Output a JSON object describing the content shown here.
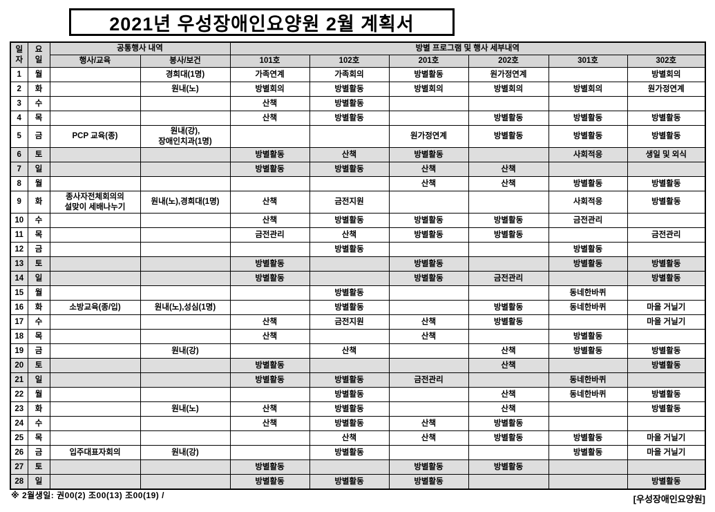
{
  "title": "2021년 우성장애인요양원 2월 계획서",
  "table": {
    "header": {
      "date": "일\n자",
      "day": "요\n일",
      "common_group": "공통행사 내역",
      "common_cols": [
        "행사/교육",
        "봉사/보건"
      ],
      "room_group": "방별 프로그램 및 행사 세부내역",
      "room_cols": [
        "101호",
        "102호",
        "201호",
        "202호",
        "301호",
        "302호"
      ]
    },
    "rows": [
      {
        "date": "1",
        "day": "월",
        "weekend": false,
        "tall": false,
        "cells": [
          "",
          "경희대(1명)",
          "가족연계",
          "가족회의",
          "방별활동",
          "원가정연계",
          "",
          "방별회의"
        ]
      },
      {
        "date": "2",
        "day": "화",
        "weekend": false,
        "tall": false,
        "cells": [
          "",
          "원내(노)",
          "방별회의",
          "방별활동",
          "방별회의",
          "방별회의",
          "방별회의",
          "원가정연계"
        ]
      },
      {
        "date": "3",
        "day": "수",
        "weekend": false,
        "tall": false,
        "cells": [
          "",
          "",
          "산책",
          "방별활동",
          "",
          "",
          "",
          ""
        ]
      },
      {
        "date": "4",
        "day": "목",
        "weekend": false,
        "tall": false,
        "cells": [
          "",
          "",
          "산책",
          "방별활동",
          "",
          "방별활동",
          "방별활동",
          "방별활동"
        ]
      },
      {
        "date": "5",
        "day": "금",
        "weekend": false,
        "tall": true,
        "cells": [
          "PCP 교육(종)",
          "원내(강),\n장애인치과(1명)",
          "",
          "",
          "원가정연계",
          "방별활동",
          "방별활동",
          "방별활동"
        ]
      },
      {
        "date": "6",
        "day": "토",
        "weekend": true,
        "tall": false,
        "cells": [
          "",
          "",
          "방별활동",
          "산책",
          "방별활동",
          "",
          "사회적응",
          "생일 및 외식"
        ]
      },
      {
        "date": "7",
        "day": "일",
        "weekend": true,
        "tall": false,
        "cells": [
          "",
          "",
          "방별활동",
          "방별활동",
          "산책",
          "산책",
          "",
          ""
        ]
      },
      {
        "date": "8",
        "day": "월",
        "weekend": false,
        "tall": false,
        "cells": [
          "",
          "",
          "",
          "",
          "산책",
          "산책",
          "방별활동",
          "방별활동"
        ]
      },
      {
        "date": "9",
        "day": "화",
        "weekend": false,
        "tall": true,
        "cells": [
          "종사자전체회의의\n설맞이 세배나누기",
          "원내(노),경희대(1명)",
          "산책",
          "금전지원",
          "",
          "",
          "사회적응",
          "방별활동"
        ]
      },
      {
        "date": "10",
        "day": "수",
        "weekend": false,
        "tall": false,
        "cells": [
          "",
          "",
          "산책",
          "방별활동",
          "방별활동",
          "방별활동",
          "금전관리",
          ""
        ]
      },
      {
        "date": "11",
        "day": "목",
        "weekend": false,
        "tall": false,
        "cells": [
          "",
          "",
          "금전관리",
          "산책",
          "방별활동",
          "방별활동",
          "",
          "금전관리"
        ]
      },
      {
        "date": "12",
        "day": "금",
        "weekend": false,
        "tall": false,
        "cells": [
          "",
          "",
          "",
          "방별활동",
          "",
          "",
          "방별활동",
          ""
        ]
      },
      {
        "date": "13",
        "day": "토",
        "weekend": true,
        "tall": false,
        "cells": [
          "",
          "",
          "방별활동",
          "",
          "방별활동",
          "",
          "방별활동",
          "방별활동"
        ]
      },
      {
        "date": "14",
        "day": "일",
        "weekend": true,
        "tall": false,
        "cells": [
          "",
          "",
          "방별활동",
          "",
          "방별활동",
          "금전관리",
          "",
          "방별활동"
        ]
      },
      {
        "date": "15",
        "day": "월",
        "weekend": false,
        "tall": false,
        "cells": [
          "",
          "",
          "",
          "방별활동",
          "",
          "",
          "동네한바퀴",
          ""
        ]
      },
      {
        "date": "16",
        "day": "화",
        "weekend": false,
        "tall": false,
        "cells": [
          "소방교육(종/입)",
          "원내(노),성심(1명)",
          "",
          "방별활동",
          "",
          "방별활동",
          "동네한바퀴",
          "마을 거닐기"
        ]
      },
      {
        "date": "17",
        "day": "수",
        "weekend": false,
        "tall": false,
        "cells": [
          "",
          "",
          "산책",
          "금전지원",
          "산책",
          "방별활동",
          "",
          "마을 거닐기"
        ]
      },
      {
        "date": "18",
        "day": "목",
        "weekend": false,
        "tall": false,
        "cells": [
          "",
          "",
          "산책",
          "",
          "산책",
          "",
          "방별활동",
          ""
        ]
      },
      {
        "date": "19",
        "day": "금",
        "weekend": false,
        "tall": false,
        "cells": [
          "",
          "원내(강)",
          "",
          "산책",
          "",
          "산책",
          "방별활동",
          "방별활동"
        ]
      },
      {
        "date": "20",
        "day": "토",
        "weekend": true,
        "tall": false,
        "cells": [
          "",
          "",
          "방별활동",
          "",
          "",
          "산책",
          "",
          "방별활동"
        ]
      },
      {
        "date": "21",
        "day": "일",
        "weekend": true,
        "tall": false,
        "cells": [
          "",
          "",
          "방별활동",
          "방별활동",
          "금전관리",
          "",
          "동네한바퀴",
          ""
        ]
      },
      {
        "date": "22",
        "day": "월",
        "weekend": false,
        "tall": false,
        "cells": [
          "",
          "",
          "",
          "방별활동",
          "",
          "산책",
          "동네한바퀴",
          "방별활동"
        ]
      },
      {
        "date": "23",
        "day": "화",
        "weekend": false,
        "tall": false,
        "cells": [
          "",
          "원내(노)",
          "산책",
          "방별활동",
          "",
          "산책",
          "",
          "방별활동"
        ]
      },
      {
        "date": "24",
        "day": "수",
        "weekend": false,
        "tall": false,
        "cells": [
          "",
          "",
          "산책",
          "방별활동",
          "산책",
          "방별활동",
          "",
          ""
        ]
      },
      {
        "date": "25",
        "day": "목",
        "weekend": false,
        "tall": false,
        "cells": [
          "",
          "",
          "",
          "산책",
          "산책",
          "방별활동",
          "방별활동",
          "마을 거닐기"
        ]
      },
      {
        "date": "26",
        "day": "금",
        "weekend": false,
        "tall": false,
        "cells": [
          "입주대표자회의",
          "원내(강)",
          "",
          "방별활동",
          "",
          "",
          "방별활동",
          "마을 거닐기"
        ]
      },
      {
        "date": "27",
        "day": "토",
        "weekend": true,
        "tall": false,
        "cells": [
          "",
          "",
          "방별활동",
          "",
          "방별활동",
          "방별활동",
          "",
          ""
        ]
      },
      {
        "date": "28",
        "day": "일",
        "weekend": true,
        "tall": false,
        "cells": [
          "",
          "",
          "방별활동",
          "방별활동",
          "방별활동",
          "",
          "",
          "방별활동"
        ]
      }
    ]
  },
  "footer": {
    "note": "※ 2월생일: 권00(2)  조00(13)  조00(19)  /",
    "org": "[우성장애인요양원]"
  }
}
